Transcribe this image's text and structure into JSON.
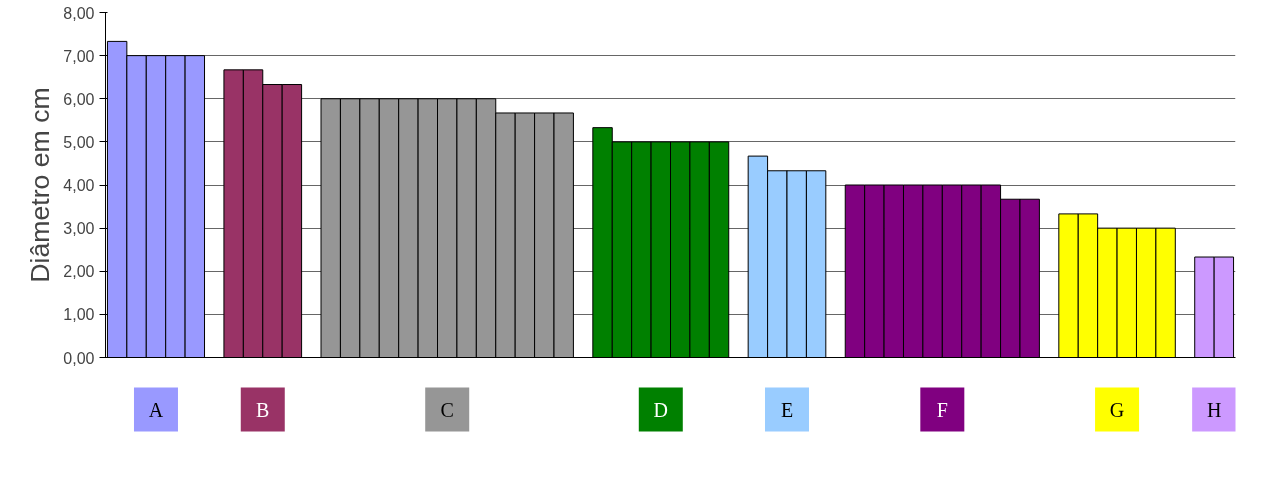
{
  "chart_data": {
    "type": "bar",
    "ylabel": "Diâmetro em cm",
    "categories": [
      null,
      null,
      null,
      null,
      null,
      null,
      null,
      null,
      null,
      null,
      null,
      null,
      null,
      null,
      null,
      null,
      null,
      null,
      null,
      null,
      null,
      null,
      null,
      null,
      null,
      null,
      null,
      null,
      null,
      null,
      null,
      null,
      null,
      null,
      null,
      null,
      null,
      null,
      null,
      null,
      null,
      null,
      null,
      null,
      null,
      null,
      null,
      null,
      null,
      null,
      null,
      null,
      null,
      null,
      null,
      null,
      null,
      null
    ],
    "ylim": [
      0,
      8
    ],
    "yticks": [
      {
        "value": 0,
        "label": "0,00"
      },
      {
        "value": 1,
        "label": "1,00"
      },
      {
        "value": 2,
        "label": "2,00"
      },
      {
        "value": 3,
        "label": "3,00"
      },
      {
        "value": 4,
        "label": "4,00"
      },
      {
        "value": 5,
        "label": "5,00"
      },
      {
        "value": 6,
        "label": "6,00"
      },
      {
        "value": 7,
        "label": "7,00"
      },
      {
        "value": 8,
        "label": "8,00"
      }
    ],
    "grid": "y",
    "legend": "bottom",
    "tick_labels": "y",
    "series": [
      {
        "name": "A",
        "color": "#9999ff",
        "values": [
          7.33,
          7,
          7,
          7,
          7,
          null,
          null,
          null,
          null,
          null,
          null,
          null,
          null,
          null,
          null,
          null,
          null,
          null,
          null,
          null,
          null,
          null,
          null,
          null,
          null,
          null,
          null,
          null,
          null,
          null,
          null,
          null,
          null,
          null,
          null,
          null,
          null,
          null,
          null,
          null,
          null,
          null,
          null,
          null,
          null,
          null,
          null,
          null,
          null,
          null,
          null,
          null,
          null,
          null,
          null,
          null,
          null,
          null
        ]
      },
      {
        "name": "B",
        "color": "#993366",
        "values": [
          null,
          null,
          null,
          null,
          null,
          null,
          6.67,
          6.67,
          6.33,
          6.33,
          null,
          null,
          null,
          null,
          null,
          null,
          null,
          null,
          null,
          null,
          null,
          null,
          null,
          null,
          null,
          null,
          null,
          null,
          null,
          null,
          null,
          null,
          null,
          null,
          null,
          null,
          null,
          null,
          null,
          null,
          null,
          null,
          null,
          null,
          null,
          null,
          null,
          null,
          null,
          null,
          null,
          null,
          null,
          null,
          null,
          null,
          null,
          null
        ]
      },
      {
        "name": "C",
        "color": "#969696",
        "values": [
          null,
          null,
          null,
          null,
          null,
          null,
          null,
          null,
          null,
          null,
          null,
          6,
          6,
          6,
          6,
          6,
          6,
          6,
          6,
          6,
          5.67,
          5.67,
          5.67,
          5.67,
          null,
          null,
          null,
          null,
          null,
          null,
          null,
          null,
          null,
          null,
          null,
          null,
          null,
          null,
          null,
          null,
          null,
          null,
          null,
          null,
          null,
          null,
          null,
          null,
          null,
          null,
          null,
          null,
          null,
          null,
          null,
          null,
          null,
          null
        ]
      },
      {
        "name": "D",
        "color": "#008000",
        "values": [
          null,
          null,
          null,
          null,
          null,
          null,
          null,
          null,
          null,
          null,
          null,
          null,
          null,
          null,
          null,
          null,
          null,
          null,
          null,
          null,
          null,
          null,
          null,
          null,
          null,
          5.33,
          5,
          5,
          5,
          5,
          5,
          5,
          null,
          null,
          null,
          null,
          null,
          null,
          null,
          null,
          null,
          null,
          null,
          null,
          null,
          null,
          null,
          null,
          null,
          null,
          null,
          null,
          null,
          null,
          null,
          null,
          null,
          null
        ]
      },
      {
        "name": "E",
        "color": "#99ccff",
        "values": [
          null,
          null,
          null,
          null,
          null,
          null,
          null,
          null,
          null,
          null,
          null,
          null,
          null,
          null,
          null,
          null,
          null,
          null,
          null,
          null,
          null,
          null,
          null,
          null,
          null,
          null,
          null,
          null,
          null,
          null,
          null,
          null,
          null,
          4.67,
          4.33,
          4.33,
          4.33,
          null,
          null,
          null,
          null,
          null,
          null,
          null,
          null,
          null,
          null,
          null,
          null,
          null,
          null,
          null,
          null,
          null,
          null,
          null,
          null,
          null
        ]
      },
      {
        "name": "F",
        "color": "#800080",
        "values": [
          null,
          null,
          null,
          null,
          null,
          null,
          null,
          null,
          null,
          null,
          null,
          null,
          null,
          null,
          null,
          null,
          null,
          null,
          null,
          null,
          null,
          null,
          null,
          null,
          null,
          null,
          null,
          null,
          null,
          null,
          null,
          null,
          null,
          null,
          null,
          null,
          null,
          null,
          4,
          4,
          4,
          4,
          4,
          4,
          4,
          4,
          3.67,
          3.67,
          null,
          null,
          null,
          null,
          null,
          null,
          null,
          null,
          null,
          null
        ]
      },
      {
        "name": "G",
        "color": "#ffff00",
        "values": [
          null,
          null,
          null,
          null,
          null,
          null,
          null,
          null,
          null,
          null,
          null,
          null,
          null,
          null,
          null,
          null,
          null,
          null,
          null,
          null,
          null,
          null,
          null,
          null,
          null,
          null,
          null,
          null,
          null,
          null,
          null,
          null,
          null,
          null,
          null,
          null,
          null,
          null,
          null,
          null,
          null,
          null,
          null,
          null,
          null,
          null,
          null,
          null,
          null,
          3.33,
          3.33,
          3,
          3,
          3,
          3,
          null,
          null,
          null
        ]
      },
      {
        "name": "H",
        "color": "#cc99ff",
        "values": [
          null,
          null,
          null,
          null,
          null,
          null,
          null,
          null,
          null,
          null,
          null,
          null,
          null,
          null,
          null,
          null,
          null,
          null,
          null,
          null,
          null,
          null,
          null,
          null,
          null,
          null,
          null,
          null,
          null,
          null,
          null,
          null,
          null,
          null,
          null,
          null,
          null,
          null,
          null,
          null,
          null,
          null,
          null,
          null,
          null,
          null,
          null,
          null,
          null,
          null,
          null,
          null,
          null,
          null,
          null,
          null,
          2.33,
          2.33
        ]
      }
    ]
  }
}
